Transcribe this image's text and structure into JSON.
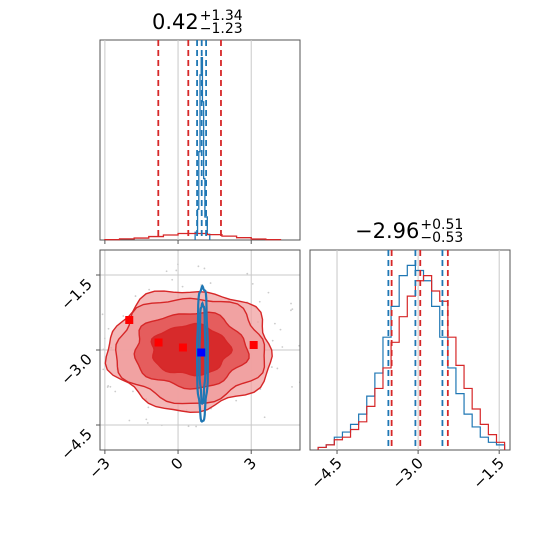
{
  "colors": {
    "red": "#d62728",
    "red_light": "#f0a0a0",
    "red_mid": "#e45a5a",
    "blue": "#1f77b4",
    "grid": "#c8c8c8",
    "axis": "#555555",
    "marker_red": "#ff0000",
    "marker_blue": "#0000ff"
  },
  "titles": {
    "param1": {
      "value": "0.42",
      "plus": "+1.34",
      "minus": "−1.23"
    },
    "param2": {
      "value": "−2.96",
      "plus": "+0.51",
      "minus": "−0.53"
    }
  },
  "chart_data": {
    "type": "corner",
    "grid": true,
    "x_param1_range": [
      -3.2,
      5.0
    ],
    "x_param2_range": [
      -5.0,
      -1.3
    ],
    "y_param2_range": [
      -5.0,
      -1.0
    ],
    "ticks_param1": [
      -3,
      0,
      3
    ],
    "tick_labels_param1": [
      "−3",
      "0",
      "3"
    ],
    "ticks_param2": [
      -4.5,
      -3.0,
      -1.5
    ],
    "tick_labels_param2": [
      "−4.5",
      "−3.0",
      "−1.5"
    ],
    "param1_hist": {
      "quantile_lines_red": [
        -0.81,
        0.42,
        1.76
      ],
      "quantile_lines_blue": [
        0.78,
        0.97,
        1.15
      ],
      "red_bins": [
        -3.0,
        -2.4,
        -1.8,
        -1.2,
        -0.6,
        0.0,
        0.6,
        1.2,
        1.8,
        2.4,
        3.0,
        3.6,
        4.2
      ],
      "red_counts": [
        0.002,
        0.006,
        0.01,
        0.018,
        0.026,
        0.034,
        0.034,
        0.028,
        0.02,
        0.012,
        0.005,
        0.002
      ],
      "blue_bins": [
        0.7,
        0.8,
        0.85,
        0.9,
        0.95,
        1.0,
        1.05,
        1.1,
        1.2,
        1.3
      ],
      "blue_counts": [
        0.04,
        0.16,
        0.46,
        0.86,
        0.95,
        0.72,
        0.32,
        0.12,
        0.03
      ]
    },
    "param2_hist": {
      "quantile_lines_red": [
        -3.49,
        -2.96,
        -2.45
      ],
      "quantile_lines_blue": [
        -3.55,
        -3.05,
        -2.55
      ],
      "red_bins": [
        -4.85,
        -4.7,
        -4.55,
        -4.4,
        -4.25,
        -4.1,
        -3.95,
        -3.8,
        -3.65,
        -3.5,
        -3.35,
        -3.2,
        -3.05,
        -2.9,
        -2.75,
        -2.6,
        -2.45,
        -2.3,
        -2.15,
        -2.0,
        -1.85,
        -1.7,
        -1.55,
        -1.4
      ],
      "red_counts": [
        0.01,
        0.02,
        0.04,
        0.05,
        0.08,
        0.11,
        0.17,
        0.24,
        0.32,
        0.42,
        0.52,
        0.6,
        0.66,
        0.68,
        0.62,
        0.58,
        0.44,
        0.33,
        0.24,
        0.16,
        0.1,
        0.06,
        0.03
      ],
      "blue_bins": [
        -4.85,
        -4.7,
        -4.55,
        -4.4,
        -4.25,
        -4.1,
        -3.95,
        -3.8,
        -3.65,
        -3.5,
        -3.35,
        -3.2,
        -3.05,
        -2.9,
        -2.75,
        -2.6,
        -2.45,
        -2.3,
        -2.15,
        -2.0,
        -1.85,
        -1.7,
        -1.55,
        -1.4
      ],
      "blue_counts": [
        0.01,
        0.02,
        0.05,
        0.07,
        0.1,
        0.14,
        0.21,
        0.3,
        0.44,
        0.56,
        0.68,
        0.72,
        0.7,
        0.66,
        0.56,
        0.44,
        0.32,
        0.22,
        0.14,
        0.09,
        0.05,
        0.03,
        0.02
      ]
    },
    "joint": {
      "red_center": [
        0.5,
        -3.0
      ],
      "red_contour_radii_x": [
        1.6,
        2.3,
        3.05,
        3.35
      ],
      "red_contour_radii_y": [
        0.5,
        0.75,
        1.05,
        1.2
      ],
      "blue_center": [
        1.0,
        -3.05
      ],
      "blue_contour_radii_x": [
        0.12,
        0.22
      ],
      "blue_contour_radii_y": [
        1.0,
        1.35
      ],
      "red_markers": [
        [
          -2.0,
          -2.4
        ],
        [
          -0.8,
          -2.85
        ],
        [
          0.2,
          -2.95
        ],
        [
          3.1,
          -2.9
        ]
      ],
      "blue_markers": [
        [
          0.95,
          -3.05
        ]
      ]
    }
  }
}
